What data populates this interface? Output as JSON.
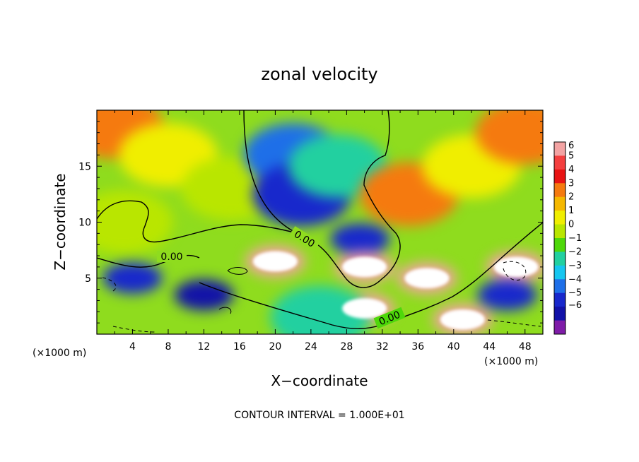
{
  "chart_data": {
    "type": "heatmap",
    "title": "zonal velocity",
    "xlabel": "X−coordinate",
    "ylabel": "Z−coordinate",
    "x_unit_label": "(×1000 m)",
    "xlim": [
      0,
      50
    ],
    "ylim": [
      0,
      20
    ],
    "x_ticks": [
      4,
      8,
      12,
      16,
      20,
      24,
      28,
      32,
      36,
      40,
      44,
      48
    ],
    "y_ticks": [
      5,
      10,
      15
    ],
    "x_tick_labels": [
      "4",
      "8",
      "12",
      "16",
      "20",
      "24",
      "28",
      "32",
      "36",
      "40",
      "44",
      "48"
    ],
    "y_tick_labels": [
      "5",
      "10",
      "15"
    ],
    "colorbar": {
      "levels": [
        6,
        5,
        4,
        3,
        2,
        1,
        0,
        -1,
        -2,
        -3,
        -4,
        -5,
        -6
      ],
      "labels": [
        "6",
        "5",
        "4",
        "3",
        "2",
        "1",
        "0",
        "−1",
        "−2",
        "−3",
        "−4",
        "−5",
        "−6"
      ],
      "colors": [
        "#f3a3a3",
        "#f43f3f",
        "#e81313",
        "#f57a0f",
        "#f5b800",
        "#f0ee00",
        "#b9e600",
        "#4ed80a",
        "#22d0a0",
        "#16c6f0",
        "#1e6fe8",
        "#1828cc",
        "#1212a8",
        "#7f1ca8"
      ]
    },
    "contour_labels": [
      "0.00",
      "0.00",
      "0.00"
    ],
    "contour_interval_text": "CONTOUR INTERVAL = 1.000E+01",
    "fields": [
      {
        "x": 2,
        "z": 18.5,
        "u": 3.2
      },
      {
        "x": 8,
        "z": 16,
        "u": 1.4
      },
      {
        "x": 15,
        "z": 13,
        "u": 0.8
      },
      {
        "x": 22,
        "z": 16,
        "u": -3.8
      },
      {
        "x": 23,
        "z": 12.5,
        "u": -4.2
      },
      {
        "x": 27,
        "z": 15,
        "u": -1.5
      },
      {
        "x": 29.5,
        "z": 8.5,
        "u": -4.8
      },
      {
        "x": 35,
        "z": 12.5,
        "u": 3.6
      },
      {
        "x": 42,
        "z": 15,
        "u": 1.3
      },
      {
        "x": 48,
        "z": 18,
        "u": 3.5
      },
      {
        "x": 3,
        "z": 10,
        "u": 0.5
      },
      {
        "x": 20,
        "z": 6.5,
        "u": 6
      },
      {
        "x": 30,
        "z": 6,
        "u": 6
      },
      {
        "x": 30,
        "z": 2.3,
        "u": 6
      },
      {
        "x": 37,
        "z": 5,
        "u": 6
      },
      {
        "x": 47,
        "z": 6,
        "u": 6
      },
      {
        "x": 41,
        "z": 1.3,
        "u": 6
      },
      {
        "x": 4,
        "z": 5,
        "u": -4.8
      },
      {
        "x": 12,
        "z": 3.5,
        "u": -5.2
      },
      {
        "x": 46,
        "z": 3.5,
        "u": -5
      },
      {
        "x": 25,
        "z": 1.5,
        "u": -1.5
      }
    ]
  }
}
